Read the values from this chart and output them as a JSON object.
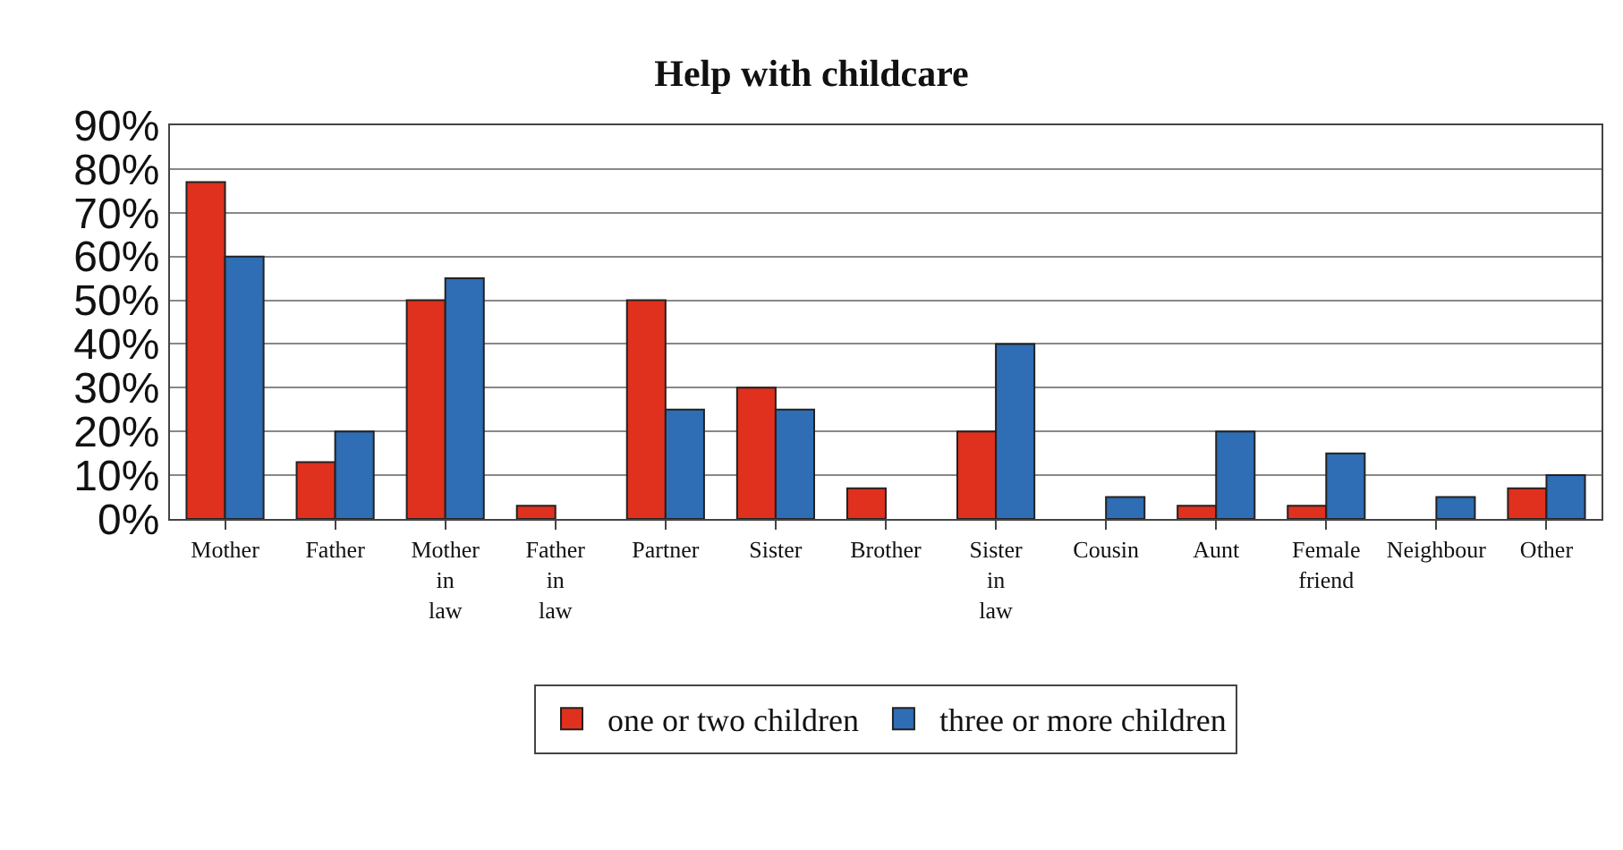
{
  "chart_data": {
    "type": "bar",
    "title": "Help with childcare",
    "categories": [
      "Mother",
      "Father",
      "Mother in law",
      "Father in law",
      "Partner",
      "Sister",
      "Brother",
      "Sister in law",
      "Cousin",
      "Aunt",
      "Female friend",
      "Neighbour",
      "Other"
    ],
    "series": [
      {
        "name": "one or two children",
        "color": "#e0301e",
        "values": [
          77,
          13,
          50,
          3,
          50,
          30,
          7,
          20,
          null,
          3,
          3,
          null,
          7
        ]
      },
      {
        "name": "three or more children",
        "color": "#2f6db5",
        "values": [
          60,
          20,
          55,
          null,
          25,
          25,
          null,
          40,
          5,
          20,
          15,
          5,
          10
        ]
      }
    ],
    "ylim": [
      0,
      90
    ],
    "yticks": [
      {
        "value": 0,
        "label": "0%"
      },
      {
        "value": 10,
        "label": "10%"
      },
      {
        "value": 20,
        "label": "20%"
      },
      {
        "value": 30,
        "label": "30%"
      },
      {
        "value": 40,
        "label": "40%"
      },
      {
        "value": 50,
        "label": "50%"
      },
      {
        "value": 60,
        "label": "60%"
      },
      {
        "value": 70,
        "label": "70%"
      },
      {
        "value": 80,
        "label": "80%"
      },
      {
        "value": 90,
        "label": "90%"
      }
    ],
    "grid": "y",
    "legend": "bottom"
  }
}
